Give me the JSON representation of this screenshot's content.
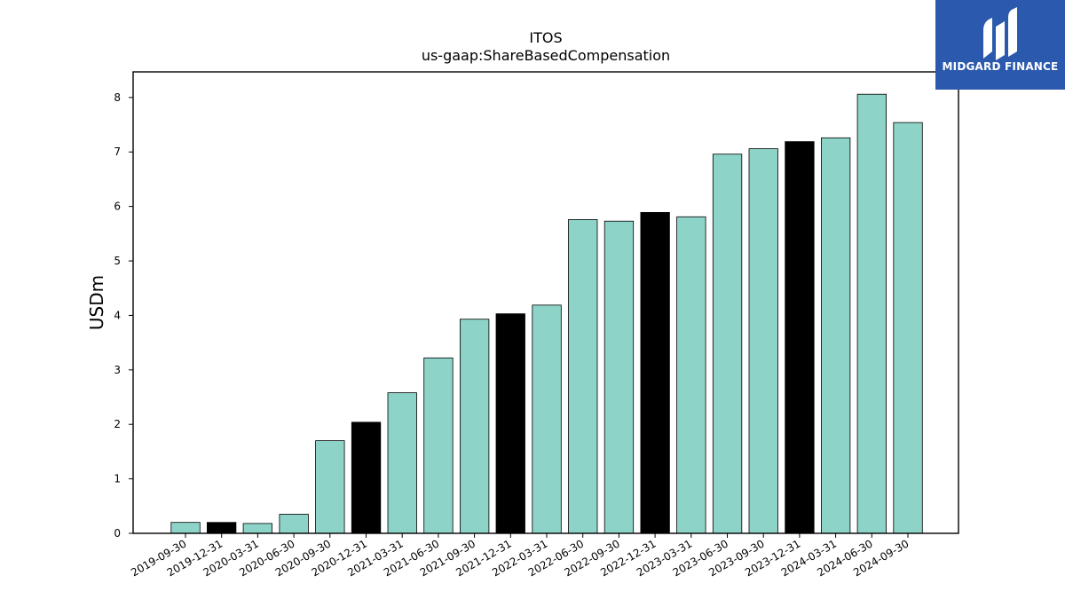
{
  "brand": {
    "name": "MIDGARD FINANCE",
    "bg_color": "#2b59ad",
    "text_color": "#ffffff",
    "mark_icon": "midgard-logo-icon"
  },
  "chart_data": {
    "type": "bar",
    "title": "ITOS",
    "subtitle": "us-gaap:ShareBasedCompensation",
    "xlabel": "",
    "ylabel": "USDm",
    "ylim": [
      0,
      8.47
    ],
    "yticks": [
      0,
      1,
      2,
      3,
      4,
      5,
      6,
      7,
      8
    ],
    "grid": false,
    "legend": "none",
    "categories": [
      "2019-09-30",
      "2019-12-31",
      "2020-03-31",
      "2020-06-30",
      "2020-09-30",
      "2020-12-31",
      "2021-03-31",
      "2021-06-30",
      "2021-09-30",
      "2021-12-31",
      "2022-03-31",
      "2022-06-30",
      "2022-09-30",
      "2022-12-31",
      "2023-03-31",
      "2023-06-30",
      "2023-09-30",
      "2023-12-31",
      "2024-03-31",
      "2024-06-30",
      "2024-09-30"
    ],
    "values": [
      0.2,
      0.2,
      0.18,
      0.35,
      1.7,
      2.04,
      2.58,
      3.22,
      3.93,
      4.03,
      4.19,
      5.76,
      5.73,
      5.89,
      5.81,
      6.96,
      7.06,
      7.19,
      7.26,
      8.06,
      7.54
    ],
    "bar_colors": [
      "#8dd3c7",
      "#000000",
      "#8dd3c7",
      "#8dd3c7",
      "#8dd3c7",
      "#000000",
      "#8dd3c7",
      "#8dd3c7",
      "#8dd3c7",
      "#000000",
      "#8dd3c7",
      "#8dd3c7",
      "#8dd3c7",
      "#000000",
      "#8dd3c7",
      "#8dd3c7",
      "#8dd3c7",
      "#000000",
      "#8dd3c7",
      "#8dd3c7",
      "#8dd3c7"
    ],
    "edge_color": "#000000"
  }
}
